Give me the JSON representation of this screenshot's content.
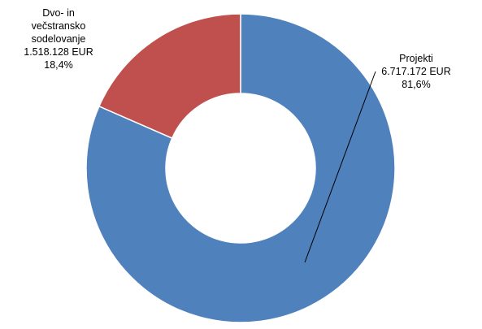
{
  "chart_data": {
    "type": "donut",
    "categories": [
      "Projekti",
      "Dvo- in večstransko sodelovanje"
    ],
    "values": [
      6717172,
      1518128
    ],
    "value_labels": [
      "6.717.172 EUR",
      "1.518.128 EUR"
    ],
    "percents": [
      81.6,
      18.4
    ],
    "percent_labels": [
      "81,6%",
      "18,4%"
    ],
    "colors": [
      "#4f81bd",
      "#c0504d"
    ]
  }
}
